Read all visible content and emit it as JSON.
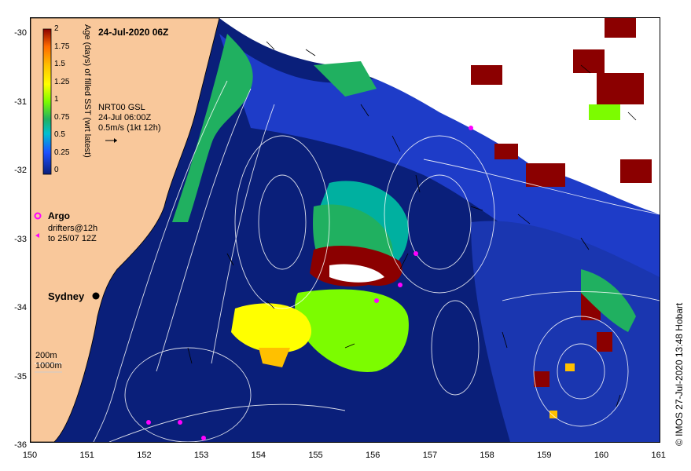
{
  "map": {
    "date_title": "24-Jul-2020 06Z",
    "nrt": {
      "line1": "NRT00 GSL",
      "line2": "24-Jul 06:00Z",
      "line3": "0.5m/s (1kt 12h)"
    },
    "colorbar": {
      "label": "Age (days) of filled SST (wrt latest)",
      "ticks": [
        "2",
        "1.75",
        "1.5",
        "1.25",
        "1",
        "0.75",
        "0.5",
        "0.25",
        "0"
      ],
      "colors": [
        "#8b0000",
        "#ff8c00",
        "#ffd700",
        "#ffff00",
        "#7cfc00",
        "#3cb371",
        "#00bcd4",
        "#1e3cff",
        "#0a1f7a"
      ]
    },
    "legend": {
      "argo": "Argo",
      "drifters_line1": "drifters@12h",
      "drifters_line2": "to 25/07 12Z",
      "argo_color": "#ff00ff"
    },
    "city": "Sydney",
    "depth": {
      "d200": "200m",
      "d1000": "1000m"
    },
    "credit": "© IMOS 27-Jul-2020 13:48 Hobart",
    "x_ticks": [
      "150",
      "151",
      "152",
      "153",
      "154",
      "155",
      "156",
      "157",
      "158",
      "159",
      "160",
      "161"
    ],
    "y_ticks": [
      "-30",
      "-31",
      "-32",
      "-33",
      "-34",
      "-35",
      "-36"
    ],
    "colors": {
      "land": "#f9c89b",
      "ocean": "#0a1f7a"
    }
  }
}
